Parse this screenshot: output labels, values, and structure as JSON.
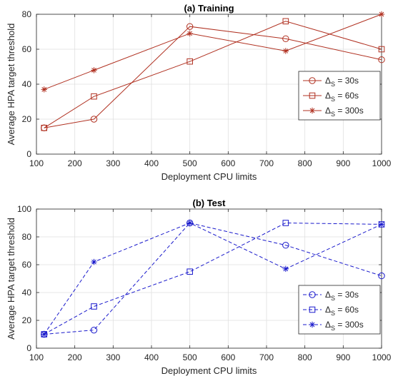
{
  "chart_data": [
    {
      "type": "line",
      "title": "(a) Training",
      "xlabel": "Deployment CPU limits",
      "ylabel": "Average HPA target threshold",
      "xlim": [
        100,
        1000
      ],
      "ylim": [
        0,
        80
      ],
      "xticks": [
        100,
        200,
        300,
        400,
        500,
        600,
        700,
        800,
        900,
        1000
      ],
      "yticks": [
        0,
        20,
        40,
        60,
        80
      ],
      "grid": true,
      "legend_position": "right",
      "line_style": "solid",
      "color": "#b03020",
      "x": [
        120,
        250,
        500,
        750,
        1000
      ],
      "series": [
        {
          "name": "Δ_S = 30s",
          "legend_base": "Δ",
          "legend_sub": "S",
          "legend_value": " = 30s",
          "marker": "circle",
          "values": [
            15,
            20,
            73,
            66,
            54
          ]
        },
        {
          "name": "Δ_S = 60s",
          "legend_base": "Δ",
          "legend_sub": "S",
          "legend_value": " = 60s",
          "marker": "square",
          "values": [
            15,
            33,
            53,
            76,
            60
          ]
        },
        {
          "name": "Δ_S = 300s",
          "legend_base": "Δ",
          "legend_sub": "S",
          "legend_value": " = 300s",
          "marker": "asterisk",
          "values": [
            37,
            48,
            69,
            59,
            80
          ]
        }
      ]
    },
    {
      "type": "line",
      "title": "(b) Test",
      "xlabel": "Deployment CPU limits",
      "ylabel": "Average HPA target threshold",
      "xlim": [
        100,
        1000
      ],
      "ylim": [
        0,
        100
      ],
      "xticks": [
        100,
        200,
        300,
        400,
        500,
        600,
        700,
        800,
        900,
        1000
      ],
      "yticks": [
        0,
        20,
        40,
        60,
        80,
        100
      ],
      "grid": true,
      "legend_position": "right",
      "line_style": "dashed",
      "color": "#1a1acc",
      "x": [
        120,
        250,
        500,
        750,
        1000
      ],
      "series": [
        {
          "name": "Δ_S = 30s",
          "legend_base": "Δ",
          "legend_sub": "S",
          "legend_value": " = 30s",
          "marker": "circle",
          "values": [
            10,
            13,
            90,
            74,
            52
          ]
        },
        {
          "name": "Δ_S = 60s",
          "legend_base": "Δ",
          "legend_sub": "S",
          "legend_value": " = 60s",
          "marker": "square",
          "values": [
            10,
            30,
            55,
            90,
            89
          ]
        },
        {
          "name": "Δ_S = 300s",
          "legend_base": "Δ",
          "legend_sub": "S",
          "legend_value": " = 300s",
          "marker": "asterisk",
          "values": [
            10,
            62,
            90,
            57,
            89
          ]
        }
      ]
    }
  ]
}
